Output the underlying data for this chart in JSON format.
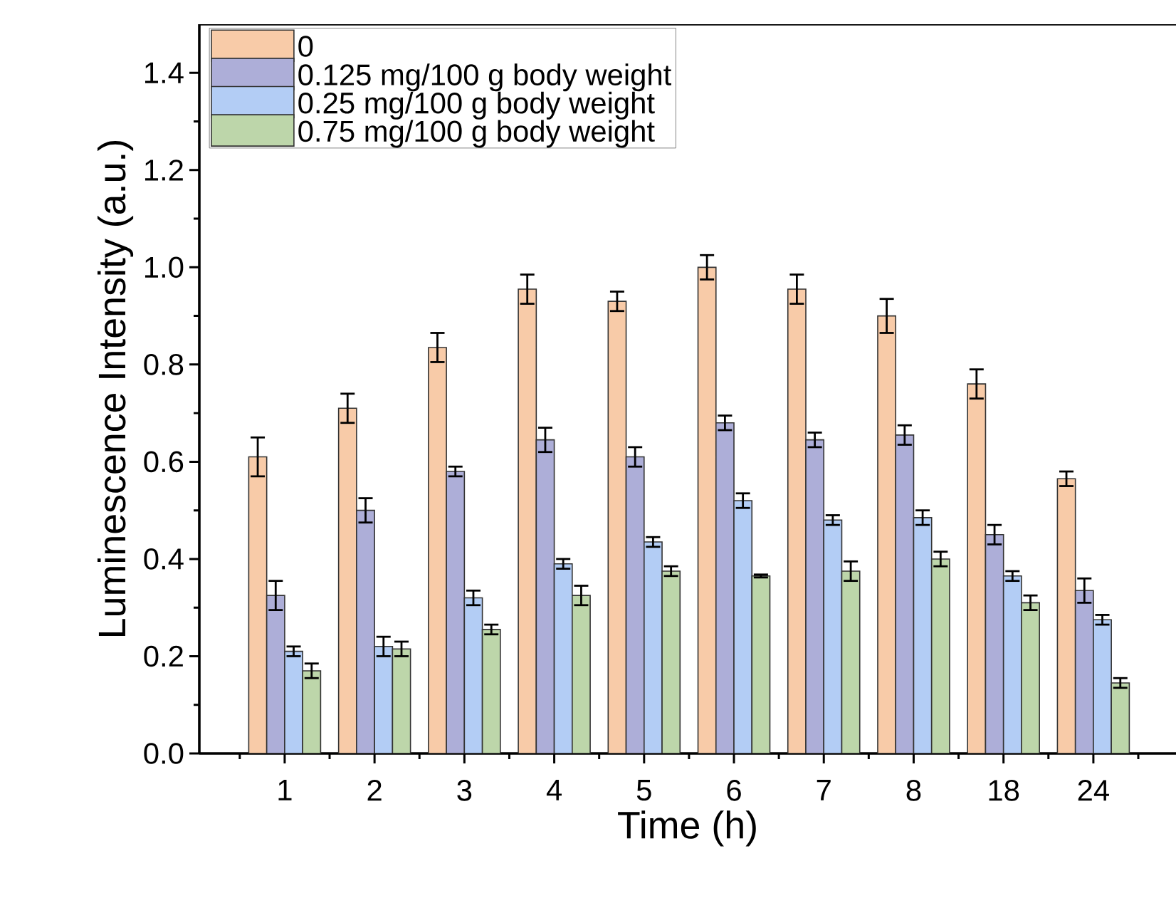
{
  "chart_data": {
    "type": "bar",
    "xlabel": "Time (h)",
    "ylabel": "Luminescence Intensity (a.u.)",
    "categories": [
      "1",
      "2",
      "3",
      "4",
      "5",
      "6",
      "7",
      "8",
      "18",
      "24"
    ],
    "series": [
      {
        "name": "0",
        "color": "#f8cba8",
        "values": [
          0.61,
          0.71,
          0.835,
          0.955,
          0.93,
          1.0,
          0.955,
          0.9,
          0.76,
          0.565
        ],
        "errors": [
          0.04,
          0.03,
          0.03,
          0.03,
          0.02,
          0.025,
          0.03,
          0.035,
          0.03,
          0.015
        ]
      },
      {
        "name": "0.125 mg/100 g body weight",
        "color": "#adaed8",
        "values": [
          0.325,
          0.5,
          0.58,
          0.645,
          0.61,
          0.68,
          0.645,
          0.655,
          0.45,
          0.335
        ],
        "errors": [
          0.03,
          0.025,
          0.01,
          0.025,
          0.02,
          0.015,
          0.015,
          0.02,
          0.02,
          0.025
        ]
      },
      {
        "name": "0.25 mg/100 g body weight",
        "color": "#b3cdf5",
        "values": [
          0.21,
          0.22,
          0.32,
          0.39,
          0.435,
          0.52,
          0.48,
          0.485,
          0.365,
          0.275
        ],
        "errors": [
          0.01,
          0.02,
          0.015,
          0.01,
          0.01,
          0.015,
          0.01,
          0.015,
          0.01,
          0.01
        ]
      },
      {
        "name": "0.75 mg/100 g body weight",
        "color": "#bdd6aa",
        "values": [
          0.17,
          0.215,
          0.255,
          0.325,
          0.375,
          0.365,
          0.375,
          0.4,
          0.31,
          0.145
        ],
        "errors": [
          0.015,
          0.015,
          0.01,
          0.02,
          0.01,
          0.003,
          0.02,
          0.015,
          0.015,
          0.01
        ]
      }
    ],
    "ylim": [
      0,
      1.5
    ],
    "yticks": [
      {
        "value": 0,
        "label": "0.0"
      },
      0.2,
      0.4,
      0.6,
      0.8,
      {
        "value": 1,
        "label": "1.0"
      },
      1.2,
      1.4
    ],
    "legend": "top left"
  }
}
